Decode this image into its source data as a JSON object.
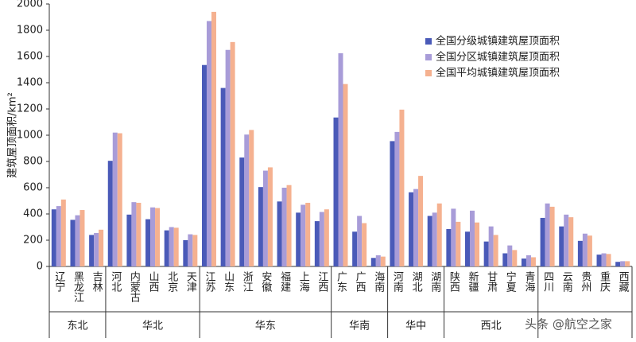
{
  "chart_data": {
    "type": "bar",
    "y_label": "建筑屋顶面积/km²",
    "categories": [
      "辽宁",
      "黑龙江",
      "吉林",
      "河北",
      "内蒙古",
      "山西",
      "北京",
      "天津",
      "江苏",
      "山东",
      "浙江",
      "安徽",
      "福建",
      "上海",
      "江西",
      "广东",
      "广西",
      "海南",
      "河南",
      "湖北",
      "湖南",
      "陕西",
      "新疆",
      "甘肃",
      "宁夏",
      "青海",
      "四川",
      "云南",
      "贵州",
      "重庆",
      "西藏"
    ],
    "groups": [
      {
        "label": "东北",
        "span": 3
      },
      {
        "label": "华北",
        "span": 5
      },
      {
        "label": "华东",
        "span": 7
      },
      {
        "label": "华南",
        "span": 3
      },
      {
        "label": "华中",
        "span": 3
      },
      {
        "label": "西北",
        "span": 5
      },
      {
        "label": null,
        "span": 5
      }
    ],
    "series": [
      {
        "name": "全国分级城镇建筑屋顶面积",
        "color": "#4a5ab8",
        "values": [
          435,
          355,
          240,
          805,
          395,
          360,
          275,
          200,
          1535,
          1360,
          830,
          605,
          495,
          410,
          345,
          1135,
          265,
          65,
          955,
          565,
          385,
          285,
          265,
          190,
          100,
          60,
          370,
          305,
          195,
          90,
          35
        ]
      },
      {
        "name": "全国分区城镇建筑屋顶面积",
        "color": "#a89cd8",
        "values": [
          460,
          390,
          255,
          1020,
          490,
          450,
          300,
          245,
          1870,
          1650,
          1005,
          730,
          600,
          470,
          415,
          1625,
          385,
          85,
          1025,
          590,
          410,
          440,
          425,
          305,
          160,
          85,
          480,
          395,
          250,
          100,
          40
        ]
      },
      {
        "name": "全国平均城镇建筑屋顶面积",
        "color": "#f5b190",
        "values": [
          510,
          430,
          280,
          1015,
          485,
          445,
          295,
          240,
          1940,
          1710,
          1040,
          755,
          620,
          485,
          435,
          1390,
          330,
          75,
          1195,
          690,
          480,
          340,
          335,
          240,
          125,
          70,
          455,
          375,
          235,
          95,
          40
        ]
      }
    ],
    "ylim": [
      0,
      2000
    ],
    "yticks": [
      0,
      200,
      400,
      600,
      800,
      1000,
      1200,
      1400,
      1600,
      1800,
      2000
    ],
    "watermark": "头条 @航空之家"
  }
}
